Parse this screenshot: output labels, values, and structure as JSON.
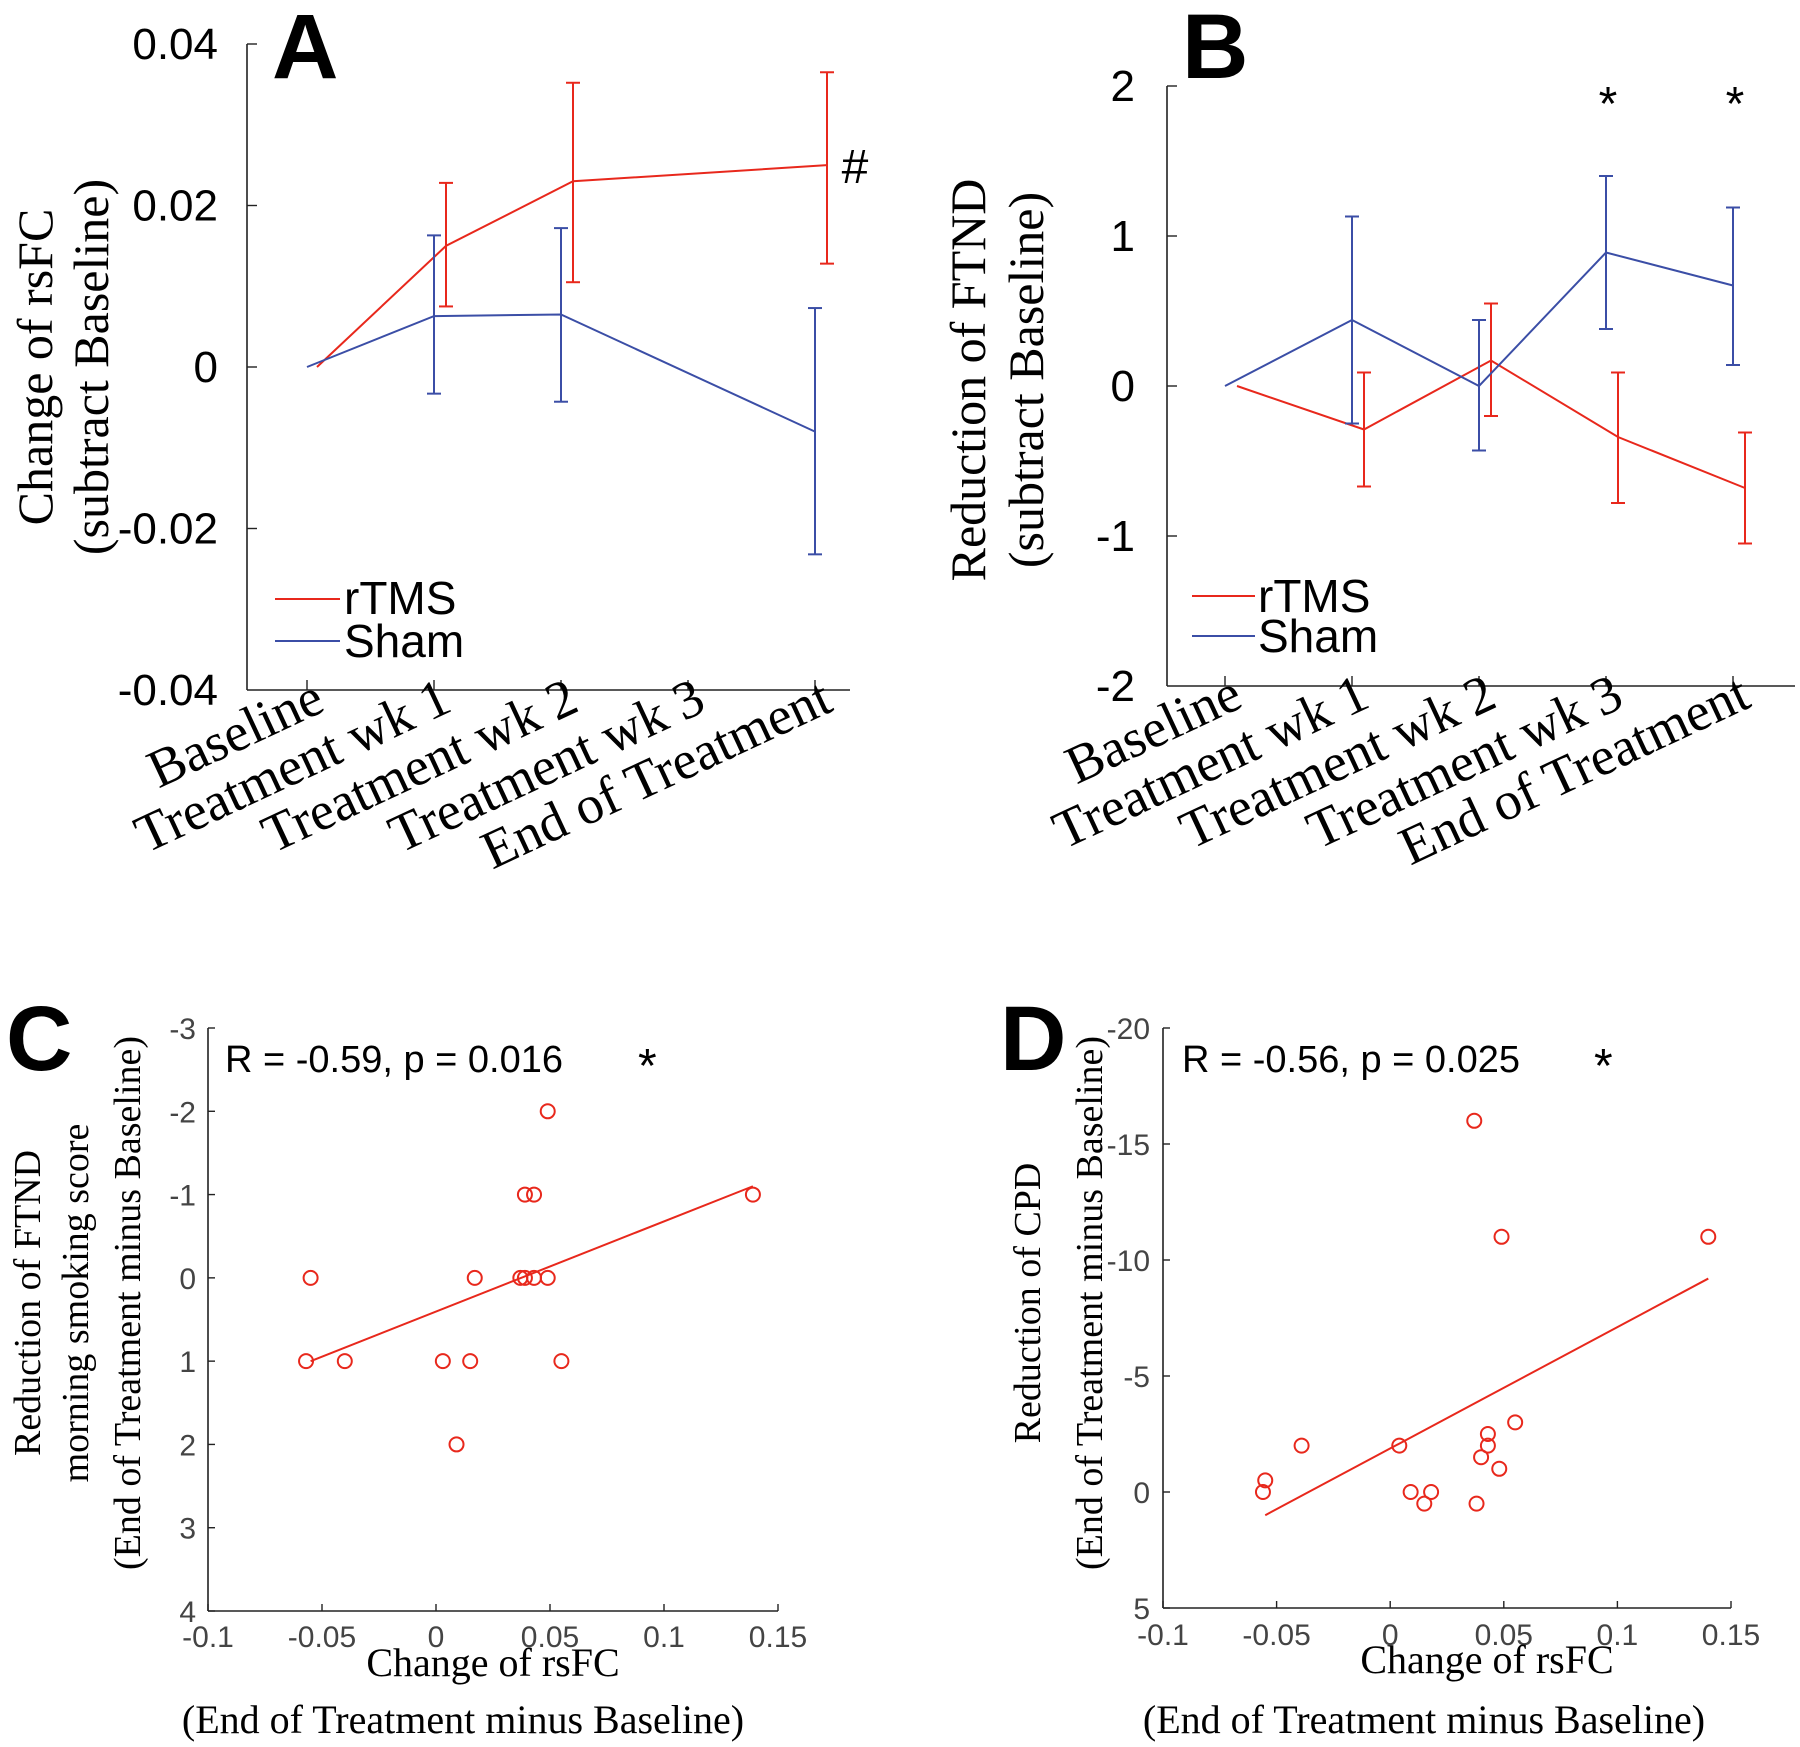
{
  "colors": {
    "rtms": "#e8281c",
    "sham": "#3b4ea6",
    "axis": "#222222"
  },
  "chart_data": [
    {
      "panel": "A",
      "type": "line",
      "categories": [
        "Baseline",
        "Treatment wk 1",
        "Treatment wk 2",
        "Treatment wk 3",
        "End of Treatment"
      ],
      "ylabel_line1": "Change of rsFC",
      "ylabel_line2": "(subtract Baseline)",
      "ylim": [
        -0.04,
        0.04
      ],
      "yticks": [
        -0.04,
        -0.02,
        0,
        0.02,
        0.04
      ],
      "ytick_labels": [
        "-0.04",
        "-0.02",
        "0",
        "0.02",
        "0.04"
      ],
      "series": [
        {
          "name": "rTMS",
          "x": [
            0,
            1,
            2,
            4
          ],
          "values": [
            0,
            0.015,
            0.023,
            0.025
          ],
          "err_low": [
            null,
            0.0075,
            0.0105,
            0.0128
          ],
          "err_high": [
            null,
            0.0228,
            0.0352,
            0.0365
          ]
        },
        {
          "name": "Sham",
          "x": [
            0,
            1,
            2,
            4
          ],
          "values": [
            0,
            0.0063,
            0.0065,
            -0.008
          ],
          "err_low": [
            null,
            -0.0033,
            -0.0043,
            -0.0232
          ],
          "err_high": [
            null,
            0.0163,
            0.0172,
            0.0073
          ]
        }
      ],
      "annotations": [
        {
          "text": "#",
          "x": 4,
          "y": 0.025
        }
      ],
      "legend": [
        "rTMS",
        "Sham"
      ]
    },
    {
      "panel": "B",
      "type": "line",
      "categories": [
        "Baseline",
        "Treatment wk 1",
        "Treatment wk 2",
        "Treatment wk 3",
        "End of Treatment"
      ],
      "ylabel_line1": "Reduction of FTND",
      "ylabel_line2": "(subtract Baseline)",
      "ylim": [
        -2,
        2
      ],
      "yticks": [
        -2,
        -1,
        0,
        1,
        2
      ],
      "ytick_labels": [
        "-2",
        "-1",
        "0",
        "1",
        "2"
      ],
      "series": [
        {
          "name": "rTMS",
          "x": [
            0,
            1,
            2,
            3,
            4
          ],
          "values": [
            0,
            -0.29,
            0.17,
            -0.34,
            -0.68
          ],
          "err_low": [
            null,
            -0.67,
            -0.2,
            -0.78,
            -1.05
          ],
          "err_high": [
            null,
            0.09,
            0.55,
            0.09,
            -0.31
          ]
        },
        {
          "name": "Sham",
          "x": [
            0,
            1,
            2,
            3,
            4
          ],
          "values": [
            0,
            0.44,
            0,
            0.89,
            0.67
          ],
          "err_low": [
            null,
            -0.25,
            -0.43,
            0.38,
            0.14
          ],
          "err_high": [
            null,
            1.13,
            0.44,
            1.4,
            1.19
          ]
        }
      ],
      "annotations": [
        {
          "text": "*",
          "x": 3
        },
        {
          "text": "*",
          "x": 4
        }
      ],
      "legend": [
        "rTMS",
        "Sham"
      ]
    },
    {
      "panel": "C",
      "type": "scatter",
      "stat_text": "R = -0.59, p = 0.016",
      "stat_star": "*",
      "xlabel_line1": "Change of rsFC",
      "xlabel_line2": "(End of Treatment minus Baseline)",
      "ylabel_line1": "Reduction of FTND",
      "ylabel_line2": "morning smoking score",
      "ylabel_line3": "(End of Treatment minus Baseline)",
      "xlim": [
        -0.1,
        0.15
      ],
      "xticks": [
        -0.1,
        -0.05,
        0,
        0.05,
        0.1,
        0.15
      ],
      "xtick_labels": [
        "-0.1",
        "-0.05",
        "0",
        "0.05",
        "0.1",
        "0.15"
      ],
      "ylim": [
        -3,
        4
      ],
      "y_reversed": true,
      "yticks": [
        -3,
        -2,
        -1,
        0,
        1,
        2,
        3,
        4
      ],
      "ytick_labels": [
        "-3",
        "-2",
        "-1",
        "0",
        "1",
        "2",
        "3",
        "4"
      ],
      "points": [
        {
          "x": -0.055,
          "y": 0
        },
        {
          "x": -0.057,
          "y": 1
        },
        {
          "x": -0.04,
          "y": 1
        },
        {
          "x": 0.003,
          "y": 1
        },
        {
          "x": 0.009,
          "y": 2
        },
        {
          "x": 0.015,
          "y": 1
        },
        {
          "x": 0.017,
          "y": 0
        },
        {
          "x": 0.037,
          "y": 0
        },
        {
          "x": 0.039,
          "y": -1
        },
        {
          "x": 0.039,
          "y": 0
        },
        {
          "x": 0.043,
          "y": -1
        },
        {
          "x": 0.043,
          "y": 0
        },
        {
          "x": 0.049,
          "y": -2
        },
        {
          "x": 0.049,
          "y": 0
        },
        {
          "x": 0.055,
          "y": 1
        },
        {
          "x": 0.139,
          "y": -1
        }
      ],
      "fit": {
        "x": [
          -0.055,
          0.139
        ],
        "y": [
          1.0,
          -1.1
        ]
      }
    },
    {
      "panel": "D",
      "type": "scatter",
      "stat_text": "R = -0.56, p = 0.025",
      "stat_star": "*",
      "xlabel_line1": "Change of rsFC",
      "xlabel_line2": "(End of Treatment minus Baseline)",
      "ylabel_line1": "Reduction of CPD",
      "ylabel_line2": "(End of Treatment minus Baseline)",
      "xlim": [
        -0.1,
        0.15
      ],
      "xticks": [
        -0.1,
        -0.05,
        0,
        0.05,
        0.1,
        0.15
      ],
      "xtick_labels": [
        "-0.1",
        "-0.05",
        "0",
        "0.05",
        "0.1",
        "0.15"
      ],
      "ylim": [
        -20,
        5
      ],
      "y_reversed": true,
      "yticks": [
        -20,
        -15,
        -10,
        -5,
        0,
        5
      ],
      "ytick_labels": [
        "-20",
        "-15",
        "-10",
        "-5",
        "0",
        "5"
      ],
      "points": [
        {
          "x": -0.056,
          "y": 0
        },
        {
          "x": -0.055,
          "y": -0.5
        },
        {
          "x": -0.039,
          "y": -2
        },
        {
          "x": 0.004,
          "y": -2
        },
        {
          "x": 0.009,
          "y": 0
        },
        {
          "x": 0.015,
          "y": 0.5
        },
        {
          "x": 0.018,
          "y": 0
        },
        {
          "x": 0.037,
          "y": -16
        },
        {
          "x": 0.038,
          "y": 0.5
        },
        {
          "x": 0.04,
          "y": -1.5
        },
        {
          "x": 0.043,
          "y": -2.5
        },
        {
          "x": 0.043,
          "y": -2
        },
        {
          "x": 0.048,
          "y": -1
        },
        {
          "x": 0.049,
          "y": -11
        },
        {
          "x": 0.055,
          "y": -3
        },
        {
          "x": 0.14,
          "y": -11
        }
      ],
      "fit": {
        "x": [
          -0.055,
          0.14
        ],
        "y": [
          1.0,
          -9.2
        ]
      }
    }
  ]
}
